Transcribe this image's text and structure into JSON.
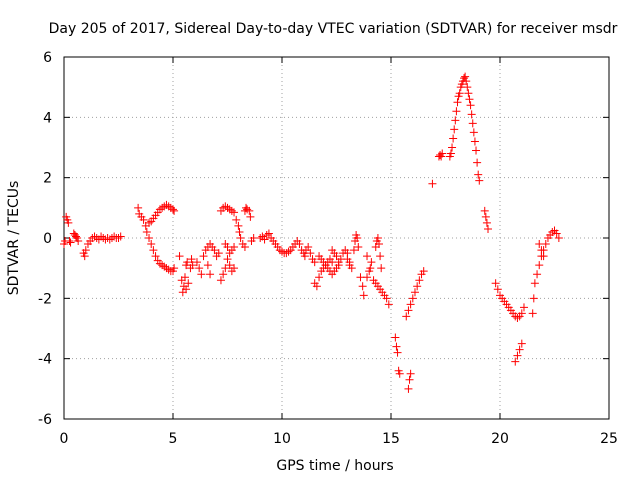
{
  "chart_data": {
    "type": "scatter",
    "title": "Day 205 of 2017, Sidereal Day-to-day VTEC variation (SDTVAR) for receiver msdr",
    "xlabel": "GPS time / hours",
    "ylabel": "SDTVAR / TECUs",
    "xlim": [
      0,
      25
    ],
    "ylim": [
      -6,
      6
    ],
    "xticks": [
      0,
      5,
      10,
      15,
      20,
      25
    ],
    "yticks": [
      -6,
      -4,
      -2,
      0,
      2,
      4,
      6
    ],
    "grid": true,
    "marker": "+",
    "color": "#ff0000",
    "series": [
      {
        "name": "SDTVAR",
        "points": [
          [
            0.0,
            -0.2
          ],
          [
            0.05,
            -0.1
          ],
          [
            0.1,
            0.7
          ],
          [
            0.15,
            0.6
          ],
          [
            0.2,
            0.5
          ],
          [
            0.25,
            -0.1
          ],
          [
            0.3,
            -0.15
          ],
          [
            0.45,
            0.15
          ],
          [
            0.5,
            0.1
          ],
          [
            0.55,
            0.05
          ],
          [
            0.6,
            0.0
          ],
          [
            0.65,
            -0.1
          ],
          [
            0.9,
            -0.5
          ],
          [
            0.95,
            -0.6
          ],
          [
            1.0,
            -0.4
          ],
          [
            1.1,
            -0.2
          ],
          [
            1.2,
            -0.1
          ],
          [
            1.3,
            0.0
          ],
          [
            1.4,
            0.05
          ],
          [
            1.5,
            0.0
          ],
          [
            1.6,
            -0.05
          ],
          [
            1.7,
            0.05
          ],
          [
            1.8,
            0.0
          ],
          [
            1.9,
            -0.05
          ],
          [
            2.0,
            0.0
          ],
          [
            2.1,
            -0.05
          ],
          [
            2.2,
            0.0
          ],
          [
            2.3,
            0.05
          ],
          [
            2.4,
            0.0
          ],
          [
            2.5,
            0.0
          ],
          [
            2.6,
            0.05
          ],
          [
            3.4,
            1.0
          ],
          [
            3.45,
            0.8
          ],
          [
            3.55,
            0.7
          ],
          [
            3.65,
            0.6
          ],
          [
            3.75,
            0.4
          ],
          [
            3.8,
            0.2
          ],
          [
            3.9,
            0.0
          ],
          [
            4.0,
            -0.2
          ],
          [
            4.1,
            -0.4
          ],
          [
            4.2,
            -0.6
          ],
          [
            4.3,
            -0.75
          ],
          [
            4.4,
            -0.85
          ],
          [
            4.5,
            -0.9
          ],
          [
            4.6,
            -0.95
          ],
          [
            4.7,
            -1.0
          ],
          [
            4.8,
            -1.05
          ],
          [
            4.9,
            -1.1
          ],
          [
            5.0,
            -1.1
          ],
          [
            5.05,
            -1.0
          ],
          [
            3.9,
            0.5
          ],
          [
            4.0,
            0.55
          ],
          [
            4.1,
            0.65
          ],
          [
            4.2,
            0.75
          ],
          [
            4.3,
            0.85
          ],
          [
            4.4,
            0.95
          ],
          [
            4.5,
            1.0
          ],
          [
            4.6,
            1.05
          ],
          [
            4.7,
            1.1
          ],
          [
            4.8,
            1.05
          ],
          [
            4.9,
            1.0
          ],
          [
            5.0,
            0.95
          ],
          [
            5.05,
            0.9
          ],
          [
            5.3,
            -0.6
          ],
          [
            5.4,
            -1.4
          ],
          [
            5.45,
            -1.8
          ],
          [
            5.5,
            -1.6
          ],
          [
            5.55,
            -1.3
          ],
          [
            5.6,
            -0.9
          ],
          [
            5.65,
            -0.8
          ],
          [
            5.6,
            -1.7
          ],
          [
            5.7,
            -1.5
          ],
          [
            5.8,
            -1.0
          ],
          [
            5.85,
            -0.7
          ],
          [
            5.9,
            -0.9
          ],
          [
            6.1,
            -0.8
          ],
          [
            6.2,
            -1.0
          ],
          [
            6.3,
            -1.2
          ],
          [
            6.4,
            -0.6
          ],
          [
            6.5,
            -0.4
          ],
          [
            6.6,
            -0.3
          ],
          [
            6.7,
            -0.2
          ],
          [
            6.8,
            -0.3
          ],
          [
            6.9,
            -0.4
          ],
          [
            7.0,
            -0.6
          ],
          [
            7.1,
            -0.5
          ],
          [
            6.6,
            -0.9
          ],
          [
            6.7,
            -1.2
          ],
          [
            7.2,
            -1.4
          ],
          [
            7.3,
            -1.2
          ],
          [
            7.4,
            -1.0
          ],
          [
            7.5,
            -0.7
          ],
          [
            7.6,
            -0.9
          ],
          [
            7.7,
            -1.1
          ],
          [
            7.8,
            -1.0
          ],
          [
            7.2,
            0.9
          ],
          [
            7.3,
            1.0
          ],
          [
            7.4,
            1.05
          ],
          [
            7.5,
            1.0
          ],
          [
            7.6,
            0.95
          ],
          [
            7.7,
            0.9
          ],
          [
            7.8,
            0.85
          ],
          [
            7.4,
            -0.2
          ],
          [
            7.5,
            -0.3
          ],
          [
            7.6,
            -0.5
          ],
          [
            7.7,
            -0.4
          ],
          [
            7.8,
            -0.3
          ],
          [
            7.9,
            0.6
          ],
          [
            8.0,
            0.4
          ],
          [
            8.05,
            0.2
          ],
          [
            8.1,
            0.0
          ],
          [
            8.2,
            -0.2
          ],
          [
            8.3,
            -0.3
          ],
          [
            8.3,
            0.9
          ],
          [
            8.35,
            1.0
          ],
          [
            8.4,
            0.95
          ],
          [
            8.5,
            0.9
          ],
          [
            8.55,
            0.7
          ],
          [
            8.6,
            -0.1
          ],
          [
            8.7,
            0.0
          ],
          [
            9.0,
            0.0
          ],
          [
            9.1,
            0.05
          ],
          [
            9.2,
            -0.05
          ],
          [
            9.3,
            0.1
          ],
          [
            9.4,
            0.15
          ],
          [
            9.5,
            0.0
          ],
          [
            9.6,
            -0.1
          ],
          [
            9.7,
            -0.2
          ],
          [
            9.8,
            -0.3
          ],
          [
            9.9,
            -0.4
          ],
          [
            10.0,
            -0.45
          ],
          [
            10.1,
            -0.5
          ],
          [
            10.2,
            -0.5
          ],
          [
            10.3,
            -0.45
          ],
          [
            10.4,
            -0.4
          ],
          [
            10.5,
            -0.3
          ],
          [
            10.6,
            -0.2
          ],
          [
            10.7,
            -0.1
          ],
          [
            10.8,
            -0.2
          ],
          [
            10.9,
            -0.4
          ],
          [
            11.0,
            -0.5
          ],
          [
            11.05,
            -0.6
          ],
          [
            11.1,
            -0.4
          ],
          [
            11.2,
            -0.3
          ],
          [
            11.3,
            -0.5
          ],
          [
            11.4,
            -0.7
          ],
          [
            11.5,
            -0.8
          ],
          [
            11.5,
            -1.5
          ],
          [
            11.6,
            -1.6
          ],
          [
            11.7,
            -1.3
          ],
          [
            11.8,
            -1.1
          ],
          [
            11.9,
            -1.0
          ],
          [
            12.0,
            -0.9
          ],
          [
            12.1,
            -0.8
          ],
          [
            12.2,
            -0.7
          ],
          [
            12.3,
            -0.8
          ],
          [
            11.7,
            -0.6
          ],
          [
            11.8,
            -0.7
          ],
          [
            11.9,
            -0.8
          ],
          [
            12.0,
            -0.9
          ],
          [
            12.1,
            -1.0
          ],
          [
            12.2,
            -1.1
          ],
          [
            12.3,
            -1.2
          ],
          [
            12.4,
            -1.1
          ],
          [
            12.5,
            -1.0
          ],
          [
            12.6,
            -0.9
          ],
          [
            12.7,
            -0.7
          ],
          [
            12.8,
            -0.5
          ],
          [
            12.9,
            -0.4
          ],
          [
            13.0,
            -0.5
          ],
          [
            13.1,
            -0.8
          ],
          [
            12.3,
            -0.4
          ],
          [
            12.4,
            -0.5
          ],
          [
            12.5,
            -0.6
          ],
          [
            12.6,
            -0.8
          ],
          [
            13.0,
            -0.7
          ],
          [
            13.1,
            -0.9
          ],
          [
            13.2,
            -1.0
          ],
          [
            13.3,
            -0.4
          ],
          [
            13.35,
            -0.1
          ],
          [
            13.4,
            0.1
          ],
          [
            13.45,
            0.0
          ],
          [
            13.5,
            -0.3
          ],
          [
            13.6,
            -1.3
          ],
          [
            13.7,
            -1.6
          ],
          [
            13.75,
            -1.9
          ],
          [
            13.9,
            -1.3
          ],
          [
            14.0,
            -1.1
          ],
          [
            14.05,
            -1.0
          ],
          [
            14.1,
            -0.8
          ],
          [
            13.9,
            -0.6
          ],
          [
            14.2,
            -1.4
          ],
          [
            14.3,
            -1.5
          ],
          [
            14.4,
            -1.6
          ],
          [
            14.5,
            -1.7
          ],
          [
            14.6,
            -1.8
          ],
          [
            14.7,
            -1.9
          ],
          [
            14.8,
            -2.0
          ],
          [
            14.9,
            -2.2
          ],
          [
            14.3,
            -0.3
          ],
          [
            14.35,
            -0.1
          ],
          [
            14.4,
            0.0
          ],
          [
            14.45,
            -0.2
          ],
          [
            14.5,
            -0.6
          ],
          [
            14.55,
            -1.0
          ],
          [
            15.2,
            -3.3
          ],
          [
            15.25,
            -3.6
          ],
          [
            15.3,
            -3.8
          ],
          [
            15.35,
            -4.4
          ],
          [
            15.4,
            -4.5
          ],
          [
            15.7,
            -2.6
          ],
          [
            15.8,
            -2.4
          ],
          [
            15.9,
            -2.2
          ],
          [
            16.0,
            -2.0
          ],
          [
            16.1,
            -1.8
          ],
          [
            16.2,
            -1.6
          ],
          [
            16.3,
            -1.4
          ],
          [
            16.4,
            -1.2
          ],
          [
            16.5,
            -1.1
          ],
          [
            15.8,
            -5.0
          ],
          [
            15.85,
            -4.7
          ],
          [
            15.9,
            -4.5
          ],
          [
            16.9,
            1.8
          ],
          [
            17.2,
            2.7
          ],
          [
            17.25,
            2.75
          ],
          [
            17.3,
            2.7
          ],
          [
            17.35,
            2.8
          ],
          [
            17.7,
            2.7
          ],
          [
            17.75,
            2.8
          ],
          [
            17.8,
            3.0
          ],
          [
            17.85,
            3.3
          ],
          [
            17.9,
            3.6
          ],
          [
            17.95,
            3.9
          ],
          [
            18.0,
            4.2
          ],
          [
            18.05,
            4.5
          ],
          [
            18.1,
            4.7
          ],
          [
            18.15,
            4.8
          ],
          [
            18.2,
            5.0
          ],
          [
            18.25,
            5.1
          ],
          [
            18.3,
            5.2
          ],
          [
            18.35,
            5.3
          ],
          [
            18.4,
            5.35
          ],
          [
            18.45,
            5.2
          ],
          [
            18.5,
            5.0
          ],
          [
            18.55,
            4.8
          ],
          [
            18.6,
            4.6
          ],
          [
            18.65,
            4.4
          ],
          [
            18.7,
            4.1
          ],
          [
            18.75,
            3.8
          ],
          [
            18.8,
            3.5
          ],
          [
            18.85,
            3.2
          ],
          [
            18.9,
            2.9
          ],
          [
            18.95,
            2.5
          ],
          [
            19.0,
            2.1
          ],
          [
            19.05,
            1.9
          ],
          [
            19.3,
            0.9
          ],
          [
            19.35,
            0.7
          ],
          [
            19.4,
            0.5
          ],
          [
            19.45,
            0.3
          ],
          [
            19.8,
            -1.5
          ],
          [
            19.9,
            -1.7
          ],
          [
            20.0,
            -1.9
          ],
          [
            20.1,
            -2.0
          ],
          [
            20.2,
            -2.1
          ],
          [
            20.3,
            -2.2
          ],
          [
            20.4,
            -2.3
          ],
          [
            20.5,
            -2.4
          ],
          [
            20.6,
            -2.5
          ],
          [
            20.7,
            -2.6
          ],
          [
            20.8,
            -2.65
          ],
          [
            20.9,
            -2.6
          ],
          [
            21.0,
            -2.5
          ],
          [
            21.1,
            -2.3
          ],
          [
            20.7,
            -4.1
          ],
          [
            20.8,
            -3.9
          ],
          [
            20.9,
            -3.7
          ],
          [
            21.0,
            -3.5
          ],
          [
            21.5,
            -2.5
          ],
          [
            21.55,
            -2.0
          ],
          [
            21.6,
            -1.5
          ],
          [
            21.7,
            -1.2
          ],
          [
            21.8,
            -0.9
          ],
          [
            21.9,
            -0.6
          ],
          [
            22.0,
            -0.4
          ],
          [
            22.1,
            -0.2
          ],
          [
            22.2,
            0.0
          ],
          [
            22.3,
            0.1
          ],
          [
            22.4,
            0.2
          ],
          [
            22.5,
            0.25
          ],
          [
            22.6,
            0.15
          ],
          [
            22.7,
            0.0
          ],
          [
            21.8,
            -0.2
          ],
          [
            21.9,
            -0.4
          ],
          [
            22.0,
            -0.6
          ]
        ]
      }
    ]
  }
}
